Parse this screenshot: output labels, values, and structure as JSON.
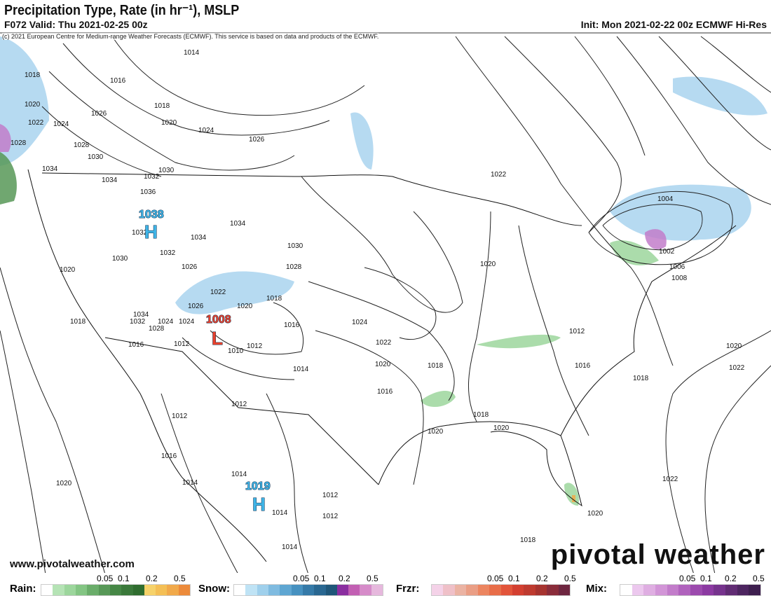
{
  "header": {
    "title": "Precipitation Type, Rate (in hr⁻¹), MSLP",
    "valid": "F072 Valid: Thu 2021-02-25 00z",
    "init": "Init: Mon 2021-02-22 00z ECMWF Hi-Res"
  },
  "copyright": "(c) 2021 European Centre for Medium-range Weather Forecasts (ECMWF). This service is based on data and products of the ECMWF.",
  "watermark": {
    "url": "www.pivotalweather.com",
    "brand": "pivotal weather"
  },
  "centers": [
    {
      "type": "H",
      "pressure": "1038",
      "color": "#3fb4e6"
    },
    {
      "type": "L",
      "pressure": "1008",
      "color": "#e8412c"
    },
    {
      "type": "H",
      "pressure": "1019",
      "color": "#3fb4e6"
    }
  ],
  "isobar_labels": [
    "1014",
    "1018",
    "1016",
    "1020",
    "1018",
    "1022",
    "1024",
    "1026",
    "1020",
    "1028",
    "1024",
    "1026",
    "1030",
    "1034",
    "1028",
    "1032",
    "1030",
    "1034",
    "1036",
    "1032",
    "1034",
    "1030",
    "1032",
    "1034",
    "1030",
    "1026",
    "1028",
    "1024",
    "1022",
    "1020",
    "1018",
    "1026",
    "1016",
    "1020",
    "1034",
    "1032",
    "1028",
    "1024",
    "1012",
    "1016",
    "1018",
    "1012",
    "1010",
    "1014",
    "1022",
    "1024",
    "1020",
    "1018",
    "1016",
    "1012",
    "1012",
    "1016",
    "1014",
    "1020",
    "1014",
    "1012",
    "1014",
    "1012",
    "1014",
    "1020",
    "1018",
    "1020",
    "1022",
    "1020",
    "1004",
    "1002",
    "1006",
    "1008",
    "1012",
    "1016",
    "1018",
    "1020",
    "1022",
    "1022",
    "1020",
    "1018"
  ],
  "legend": [
    {
      "name": "Rain:",
      "ticks": [
        "0.05",
        "0.1",
        "0.2",
        "0.5"
      ],
      "colors": [
        "#ffffff",
        "#b5e3b5",
        "#9cd69c",
        "#83c583",
        "#6aad6a",
        "#579857",
        "#468746",
        "#3a793a",
        "#2f6d2f",
        "#f6d26a",
        "#f4bf55",
        "#f1a94a",
        "#ec8a3a"
      ]
    },
    {
      "name": "Snow:",
      "ticks": [
        "0.05",
        "0.1",
        "0.2",
        "0.5"
      ],
      "colors": [
        "#ffffff",
        "#bfe3f5",
        "#9fd0ec",
        "#7fbbe0",
        "#5ea6d2",
        "#4691c0",
        "#357aa8",
        "#296791",
        "#1f5679",
        "#8b2ea0",
        "#c25fb3",
        "#d68bc9",
        "#e6b8dd"
      ]
    },
    {
      "name": "Frzr:",
      "ticks": [
        "0.05",
        "0.1",
        "0.2",
        "0.5"
      ],
      "colors": [
        "#f4d2e8",
        "#efc0c8",
        "#ebb3a3",
        "#ea9e85",
        "#ec8560",
        "#e86d48",
        "#e2543a",
        "#d33f30",
        "#be3a2f",
        "#a6332f",
        "#8a2c3a",
        "#6e2640"
      ]
    },
    {
      "name": "Mix:",
      "ticks": [
        "0.05",
        "0.1",
        "0.2",
        "0.5"
      ],
      "colors": [
        "#ffffff",
        "#ecc8ee",
        "#dfaee2",
        "#d295d7",
        "#c27cca",
        "#b062bd",
        "#9c4aae",
        "#8c3aa2",
        "#76338d",
        "#612c74",
        "#4d2560",
        "#3e1f4f"
      ]
    }
  ]
}
